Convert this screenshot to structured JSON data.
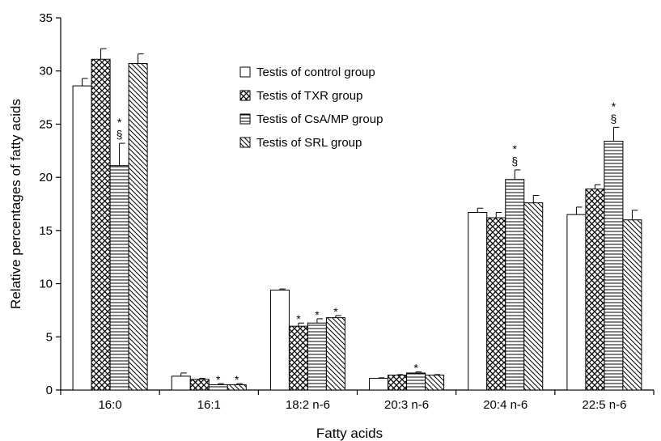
{
  "chart_data": {
    "type": "bar",
    "title": "",
    "xlabel": "Fatty acids",
    "ylabel": "Relative percentages of fatty acids",
    "categories": [
      "16:0",
      "16:1",
      "18:2 n-6",
      "20:3 n-6",
      "20:4 n-6",
      "22:5 n-6"
    ],
    "ylim": [
      0,
      35
    ],
    "yticks": [
      "0",
      "5",
      "10",
      "15",
      "20",
      "25",
      "30",
      "35"
    ],
    "legend_position": "top-center",
    "series": [
      {
        "name": "Testis of control group",
        "pattern": "open",
        "values": [
          28.6,
          1.3,
          9.4,
          1.1,
          16.7,
          16.5
        ],
        "errors": [
          0.7,
          0.3,
          0.1,
          0.05,
          0.4,
          0.7
        ],
        "markers": [
          "",
          "",
          "",
          "",
          "",
          ""
        ]
      },
      {
        "name": "Testis of TXR group",
        "pattern": "crosshatch",
        "values": [
          31.1,
          1.0,
          6.0,
          1.4,
          16.2,
          18.9
        ],
        "errors": [
          1.0,
          0.1,
          0.3,
          0.05,
          0.5,
          0.4
        ],
        "markers": [
          "",
          "",
          "*",
          "",
          "",
          ""
        ]
      },
      {
        "name": "Testis of CsA/MP group",
        "pattern": "horizontal",
        "values": [
          21.1,
          0.5,
          6.3,
          1.6,
          19.8,
          23.4
        ],
        "errors": [
          2.1,
          0.1,
          0.4,
          0.1,
          0.9,
          1.3
        ],
        "markers": [
          "*§",
          "*",
          "*",
          "*",
          "*§",
          "*§"
        ]
      },
      {
        "name": "Testis of SRL group",
        "pattern": "diagonal",
        "values": [
          30.7,
          0.5,
          6.8,
          1.4,
          17.6,
          16.0
        ],
        "errors": [
          0.9,
          0.1,
          0.2,
          0.05,
          0.7,
          0.9
        ],
        "markers": [
          "",
          "*",
          "*",
          "",
          "",
          ""
        ]
      }
    ]
  }
}
